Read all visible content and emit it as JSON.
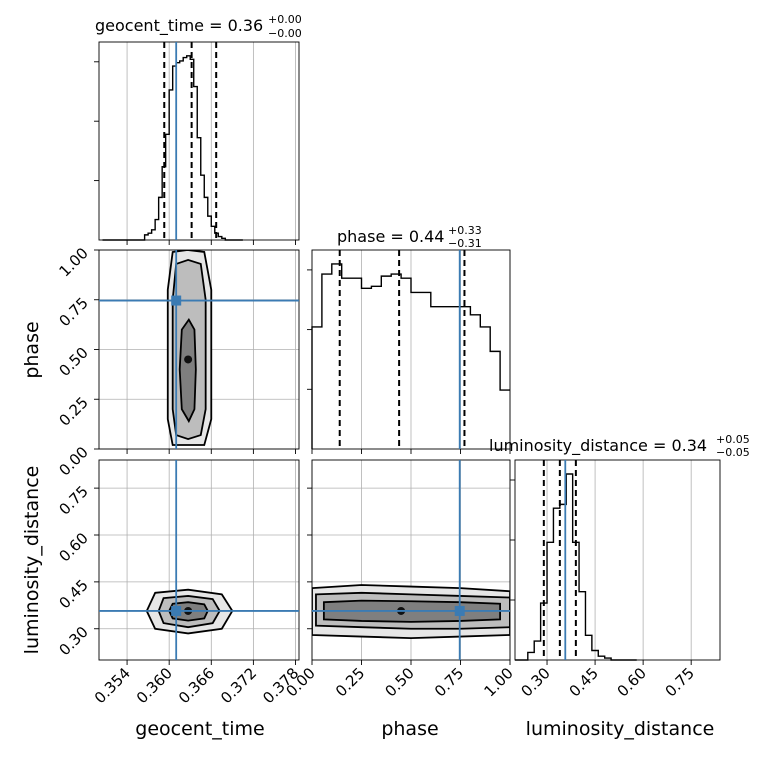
{
  "chart_data": {
    "type": "corner",
    "parameters": [
      "geocent_time",
      "phase",
      "luminosity_distance"
    ],
    "truths": {
      "geocent_time": 0.361,
      "phase": 0.746,
      "luminosity_distance": 0.357
    },
    "titles": {
      "geocent_time": {
        "label": "geocent_time = 0.36",
        "plus": "+0.00",
        "minus": "−0.00"
      },
      "phase": {
        "label": "phase = 0.44",
        "plus": "+0.33",
        "minus": "−0.31"
      },
      "luminosity_distance": {
        "label": "luminosity_distance = 0.34",
        "plus": "+0.05",
        "minus": "−0.05"
      }
    },
    "axes": {
      "geocent_time": {
        "range": [
          0.35,
          0.3785
        ],
        "ticks": [
          "0.354",
          "0.360",
          "0.366",
          "0.372",
          "0.378"
        ]
      },
      "phase": {
        "range": [
          0.0,
          1.0
        ],
        "ticks": [
          "0.00",
          "0.25",
          "0.50",
          "0.75",
          "1.00"
        ]
      },
      "luminosity_distance": {
        "range": [
          0.2,
          0.84
        ],
        "ticks": [
          "0.30",
          "0.45",
          "0.60",
          "0.75"
        ]
      }
    },
    "histograms": {
      "geocent_time": {
        "quantiles": [
          0.3593,
          0.3632,
          0.3667
        ],
        "bins": [
          0.3505,
          0.351,
          0.3515,
          0.352,
          0.3525,
          0.353,
          0.3535,
          0.354,
          0.3545,
          0.355,
          0.3555,
          0.356,
          0.3565,
          0.357,
          0.3575,
          0.358,
          0.3585,
          0.359,
          0.3595,
          0.36,
          0.3605,
          0.361,
          0.3615,
          0.362,
          0.3625,
          0.363,
          0.3635,
          0.364,
          0.3645,
          0.365,
          0.3655,
          0.366,
          0.3665,
          0.367,
          0.3675,
          0.368,
          0.3685,
          0.369,
          0.3695,
          0.37,
          0.3705
        ],
        "counts": [
          0,
          0,
          0,
          0,
          0,
          0,
          0,
          0,
          0,
          0,
          0,
          0,
          3,
          4,
          6,
          12,
          25,
          43,
          62,
          88,
          102,
          104,
          105,
          107,
          108,
          106,
          90,
          60,
          38,
          25,
          14,
          8,
          4,
          2,
          1,
          0,
          0,
          0,
          0,
          0
        ]
      },
      "phase": {
        "quantiles": [
          0.14,
          0.44,
          0.77
        ],
        "bins": [
          0.0,
          0.05,
          0.1,
          0.15,
          0.2,
          0.25,
          0.3,
          0.35,
          0.4,
          0.45,
          0.5,
          0.55,
          0.6,
          0.65,
          0.7,
          0.75,
          0.8,
          0.85,
          0.9,
          0.95,
          1.0
        ],
        "counts": [
          60,
          86,
          91,
          84,
          84,
          79,
          80,
          85,
          86,
          84,
          77,
          77,
          70,
          70,
          70,
          70,
          66,
          60,
          48,
          29
        ]
      },
      "luminosity_distance": {
        "quantiles": [
          0.29,
          0.34,
          0.39
        ],
        "bins": [
          0.2,
          0.22,
          0.24,
          0.26,
          0.28,
          0.3,
          0.32,
          0.34,
          0.36,
          0.38,
          0.4,
          0.42,
          0.44,
          0.46,
          0.48,
          0.5,
          0.52,
          0.54,
          0.56,
          0.58
        ],
        "counts": [
          0,
          0,
          4,
          10,
          30,
          62,
          80,
          82,
          98,
          62,
          36,
          13,
          5,
          2,
          1,
          0,
          0,
          0,
          0
        ]
      }
    },
    "contours_2d": {
      "phase_vs_geocent_time": {
        "center": [
          0.3627,
          0.45
        ],
        "levels": [
          {
            "x": [
              0.3605,
              0.3626,
              0.365,
              0.366,
              0.366,
              0.365,
              0.3626,
              0.3605,
              0.3598,
              0.3598
            ],
            "y": [
              0.99,
              1.0,
              0.99,
              0.8,
              0.15,
              0.02,
              0.02,
              0.02,
              0.15,
              0.8
            ]
          },
          {
            "x": [
              0.361,
              0.3627,
              0.3645,
              0.3652,
              0.3652,
              0.3645,
              0.3627,
              0.361,
              0.3605,
              0.3605
            ],
            "y": [
              0.93,
              0.95,
              0.93,
              0.75,
              0.2,
              0.07,
              0.05,
              0.07,
              0.2,
              0.75
            ]
          },
          {
            "x": [
              0.3618,
              0.3628,
              0.3636,
              0.3638,
              0.3636,
              0.3628,
              0.3618,
              0.3615
            ],
            "y": [
              0.6,
              0.65,
              0.6,
              0.4,
              0.2,
              0.14,
              0.2,
              0.4
            ]
          }
        ]
      },
      "luminosity_distance_vs_geocent_time": {
        "center": [
          0.3627,
          0.357
        ],
        "levels": [
          {
            "x": [
              0.358,
              0.3627,
              0.3675,
              0.369,
              0.3675,
              0.3627,
              0.358,
              0.3568
            ],
            "y": [
              0.415,
              0.425,
              0.41,
              0.357,
              0.3,
              0.285,
              0.3,
              0.357
            ]
          },
          {
            "x": [
              0.3592,
              0.3627,
              0.3662,
              0.3672,
              0.3662,
              0.3627,
              0.3592,
              0.3585
            ],
            "y": [
              0.398,
              0.405,
              0.395,
              0.357,
              0.318,
              0.305,
              0.318,
              0.357
            ]
          },
          {
            "x": [
              0.3605,
              0.3627,
              0.365,
              0.3655,
              0.365,
              0.3627,
              0.3605,
              0.36
            ],
            "y": [
              0.38,
              0.385,
              0.378,
              0.357,
              0.333,
              0.326,
              0.333,
              0.357
            ]
          }
        ]
      },
      "luminosity_distance_vs_phase": {
        "center": [
          0.45,
          0.357
        ],
        "levels": [
          {
            "x": [
              0.0,
              0.25,
              0.5,
              0.75,
              1.0,
              1.0,
              0.75,
              0.5,
              0.25,
              0.0
            ],
            "y": [
              0.43,
              0.44,
              0.435,
              0.43,
              0.42,
              0.28,
              0.275,
              0.27,
              0.275,
              0.28
            ]
          },
          {
            "x": [
              0.02,
              0.25,
              0.5,
              0.75,
              1.0,
              1.0,
              0.75,
              0.5,
              0.25,
              0.02
            ],
            "y": [
              0.41,
              0.415,
              0.41,
              0.405,
              0.4,
              0.305,
              0.3,
              0.3,
              0.305,
              0.31
            ]
          },
          {
            "x": [
              0.06,
              0.25,
              0.5,
              0.75,
              0.95,
              0.95,
              0.75,
              0.5,
              0.25,
              0.06
            ],
            "y": [
              0.385,
              0.39,
              0.388,
              0.385,
              0.38,
              0.33,
              0.325,
              0.322,
              0.325,
              0.33
            ]
          }
        ]
      }
    }
  }
}
